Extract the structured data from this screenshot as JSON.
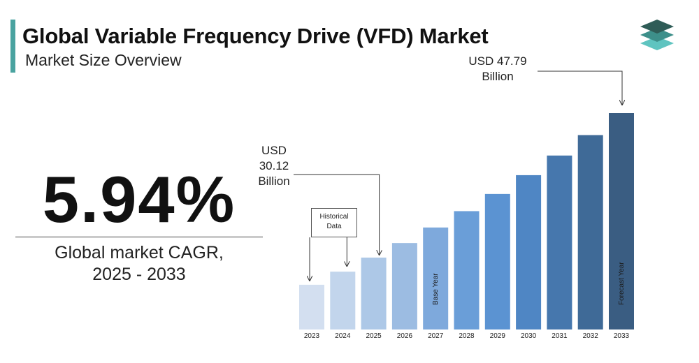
{
  "header": {
    "title": "Global Variable Frequency Drive (VFD) Market",
    "subtitle": "Market Size Overview",
    "accent_color": "#4aa3a0"
  },
  "logo": {
    "icon": "stacked-layers-logo-icon",
    "colors": [
      "#2f5c57",
      "#3d8f8a",
      "#5fc4c0"
    ]
  },
  "cagr": {
    "value": "5.94%",
    "label_line1": "Global market CAGR,",
    "label_line2": "2025 - 2033"
  },
  "callouts": {
    "value_2025": {
      "line1": "USD",
      "line2": "30.12",
      "line3": "Billion"
    },
    "value_2033": {
      "line1": "USD 47.79",
      "line2": "Billion"
    },
    "historical_box": {
      "line1": "Historical",
      "line2": "Data"
    }
  },
  "chart_data": {
    "type": "bar",
    "categories": [
      "2023",
      "2024",
      "2025",
      "2026",
      "2027",
      "2028",
      "2029",
      "2030",
      "2031",
      "2032",
      "2033"
    ],
    "values": [
      26.8,
      28.4,
      30.12,
      31.9,
      33.8,
      35.8,
      37.9,
      40.2,
      42.6,
      45.1,
      47.79
    ],
    "unit": "USD Billion",
    "bar_colors": [
      "#d3dff0",
      "#c2d5ec",
      "#adc8e7",
      "#9cbce2",
      "#7ea9dc",
      "#6a9ed8",
      "#5b93d2",
      "#4f86c4",
      "#4677ad",
      "#3f6a97",
      "#3a5d82"
    ],
    "bar_labels": {
      "2027": "Base Year",
      "2033": "Forecast Year"
    },
    "grid": false,
    "legend": "none"
  }
}
